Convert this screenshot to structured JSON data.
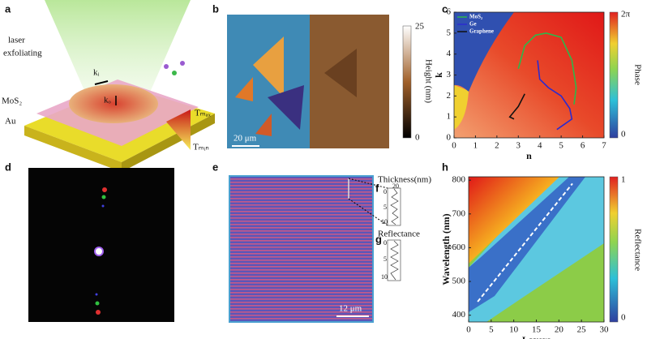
{
  "panel_labels": [
    "a",
    "b",
    "c",
    "d",
    "e",
    "f",
    "g",
    "h"
  ],
  "panel_a": {
    "laser": "laser",
    "exfoliating": "exfoliating",
    "ki": "kᵢ",
    "ko": "kₒ",
    "mos2": "MoS₂",
    "au": "Au",
    "tmax": "Tₘₐₓ",
    "tmin": "Tₘᵢₙ"
  },
  "panel_b": {
    "scale_bar": "20 μm",
    "colorbar_label": "Height (nm)",
    "colorbar_ticks": [
      "25",
      "0"
    ]
  },
  "panel_e": {
    "scale_bar": "12 μm"
  },
  "panel_f": {
    "label": "Thickness(nm)",
    "ticks": [
      "20",
      "0",
      "5",
      "10"
    ]
  },
  "panel_g": {
    "label": "Reflectance",
    "ticks": [
      "0",
      "5",
      "10"
    ]
  },
  "chart_data": [
    {
      "type": "line",
      "x_label": "n",
      "y_label": "k",
      "xlim": [
        0,
        7
      ],
      "ylim": [
        0,
        6
      ],
      "xticks": [
        0,
        1,
        2,
        3,
        4,
        5,
        6,
        7
      ],
      "yticks": [
        0,
        1,
        2,
        3,
        4,
        5,
        6
      ],
      "colorbar": {
        "label": "Phase",
        "ticks": [
          "2π",
          "0"
        ]
      },
      "series": [
        {
          "name": "MoS₂",
          "color": "#2db84a",
          "x": [
            3.0,
            3.3,
            3.8,
            4.3,
            5.0,
            5.5,
            5.7,
            5.6
          ],
          "values": [
            3.3,
            4.4,
            4.9,
            5.0,
            4.8,
            3.7,
            2.4,
            1.6
          ]
        },
        {
          "name": "Ge",
          "color": "#2a2ad0",
          "x": [
            3.9,
            4.0,
            4.4,
            5.0,
            5.4,
            5.5,
            4.8
          ],
          "values": [
            3.7,
            2.8,
            2.4,
            2.0,
            1.4,
            0.9,
            0.4
          ]
        },
        {
          "name": "Graphene",
          "color": "#111111",
          "x": [
            3.3,
            3.0,
            2.6,
            2.8
          ],
          "values": [
            2.1,
            1.5,
            1.0,
            0.9
          ]
        }
      ]
    },
    {
      "type": "heatmap",
      "x_label": "Layers",
      "y_label": "Wavelength (nm)",
      "xlim": [
        0,
        30
      ],
      "ylim": [
        380,
        810
      ],
      "xticks": [
        0,
        5,
        10,
        15,
        20,
        25,
        30
      ],
      "yticks": [
        400,
        500,
        600,
        700,
        800
      ],
      "colorbar": {
        "label": "Reflectance",
        "ticks": [
          "1",
          "0"
        ]
      },
      "guide": {
        "x": [
          2,
          23
        ],
        "values": [
          440,
          790
        ]
      }
    }
  ]
}
